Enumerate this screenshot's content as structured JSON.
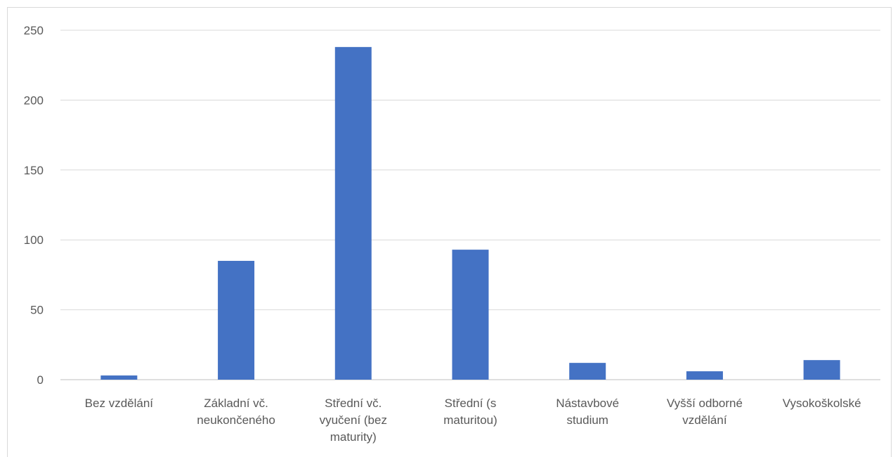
{
  "chart_data": {
    "type": "bar",
    "categories": [
      [
        "Bez vzdělání"
      ],
      [
        "Základní vč.",
        "neukončeného"
      ],
      [
        "Střední vč.",
        "vyučení (bez",
        "maturity)"
      ],
      [
        "Střední (s",
        "maturitou)"
      ],
      [
        "Nástavbové",
        "studium"
      ],
      [
        "Vyšší odborné",
        "vzdělání"
      ],
      [
        "Vysokoškolské"
      ]
    ],
    "values": [
      3,
      85,
      238,
      93,
      12,
      6,
      14
    ],
    "ylim": [
      0,
      250
    ],
    "yticks": [
      0,
      50,
      100,
      150,
      200,
      250
    ],
    "grid": true,
    "colors": {
      "bar": "#4472c4",
      "grid": "#d9d9d9",
      "axis": "#bfbfbf"
    }
  }
}
